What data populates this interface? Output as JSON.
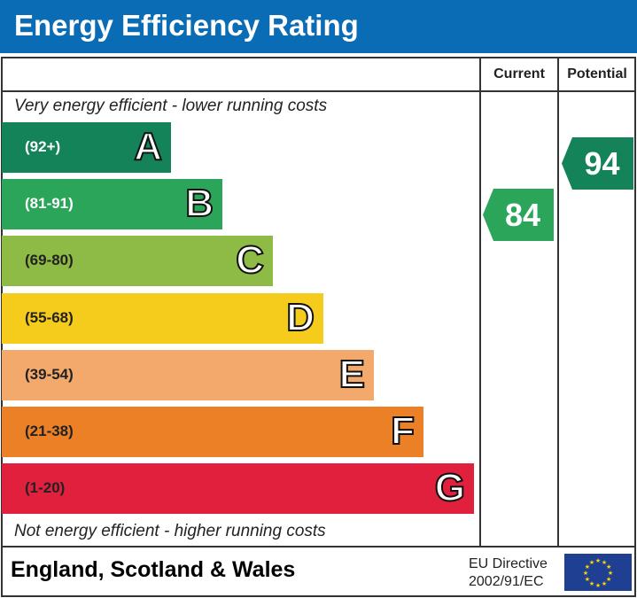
{
  "title": "Energy Efficiency Rating",
  "columns": {
    "current": "Current",
    "potential": "Potential"
  },
  "top_note": "Very energy efficient - lower running costs",
  "bottom_note": "Not energy efficient - higher running costs",
  "footer": {
    "region": "England, Scotland & Wales",
    "directive_line1": "EU Directive",
    "directive_line2": "2002/91/EC",
    "flag_icon": "eu-flag-icon"
  },
  "chart_data": {
    "type": "bar",
    "categories": [
      "A",
      "B",
      "C",
      "D",
      "E",
      "F",
      "G"
    ],
    "ranges": [
      "(92+)",
      "(81-91)",
      "(69-80)",
      "(55-68)",
      "(39-54)",
      "(21-38)",
      "(1-20)"
    ],
    "colors": [
      "#14835a",
      "#2aa55a",
      "#8dbb45",
      "#f5cc1b",
      "#f2a96b",
      "#ec8026",
      "#e0203d"
    ],
    "range_text_colors": [
      "#ffffff",
      "#ffffff",
      "#222222",
      "#222222",
      "#222222",
      "#222222",
      "#222222"
    ],
    "current": {
      "value": 84,
      "band": "B",
      "color": "#2aa55a"
    },
    "potential": {
      "value": 94,
      "band": "A",
      "color": "#14835a"
    }
  },
  "colors": {
    "header": "#0a6cb4"
  }
}
